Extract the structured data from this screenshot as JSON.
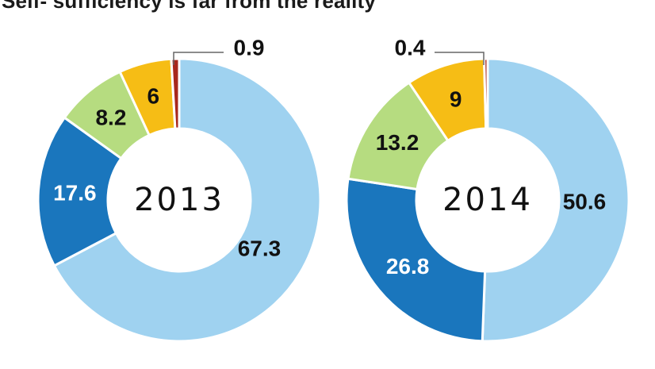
{
  "title": "Self- sufficiency is far from the reality",
  "chart_data": [
    {
      "type": "pie",
      "center_label": "2013",
      "values": [
        67.3,
        17.6,
        8.2,
        6,
        0.9
      ],
      "labels": [
        "67.3",
        "17.6",
        "8.2",
        "6",
        "0.9"
      ],
      "colors": [
        "#9fd2f0",
        "#1a76bd",
        "#b6dc80",
        "#f6bd15",
        "#a8281c"
      ],
      "label_colors": [
        "#111111",
        "#ffffff",
        "#111111",
        "#111111",
        "#111111"
      ]
    },
    {
      "type": "pie",
      "center_label": "2014",
      "values": [
        50.6,
        26.8,
        13.2,
        9,
        0.4
      ],
      "labels": [
        "50.6",
        "26.8",
        "13.2",
        "9",
        "0.4"
      ],
      "colors": [
        "#9fd2f0",
        "#1a76bd",
        "#b6dc80",
        "#f6bd15",
        "#a8281c"
      ],
      "label_colors": [
        "#111111",
        "#ffffff",
        "#111111",
        "#111111",
        "#111111"
      ]
    }
  ]
}
